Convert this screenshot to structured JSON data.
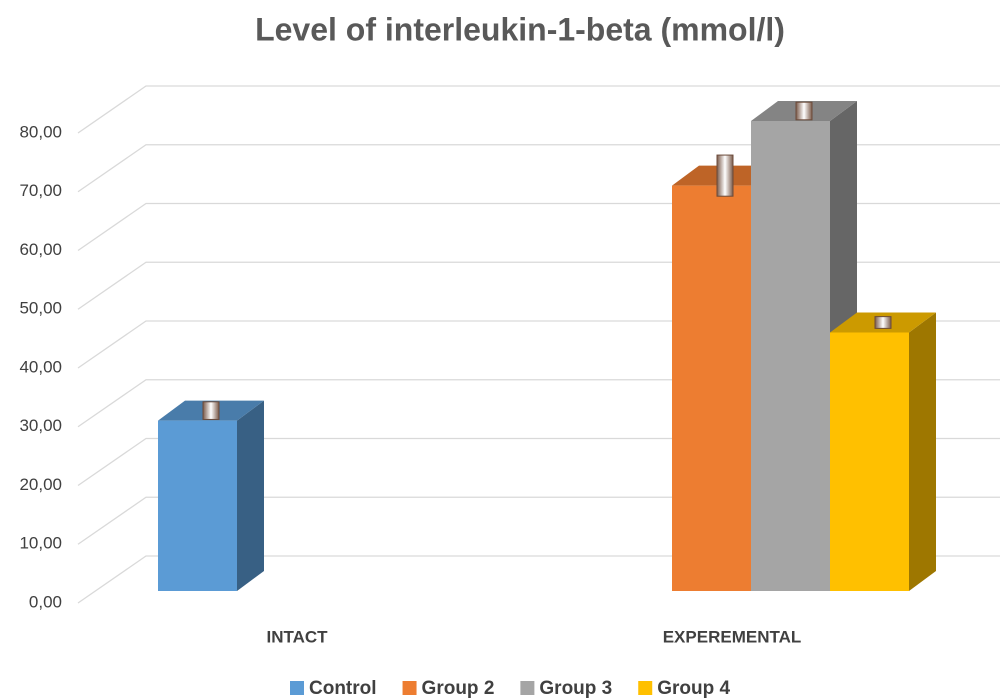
{
  "chart_data": {
    "type": "bar3d",
    "title": "Level of interleukin-1-beta (mmol/l)",
    "categories": [
      "INTACT",
      "EXPEREMENTAL"
    ],
    "series": [
      {
        "name": "Control",
        "color": "#5b9bd5",
        "values": [
          29,
          null
        ],
        "errors": [
          1.5,
          null
        ]
      },
      {
        "name": "Group 2",
        "color": "#ed7d31",
        "values": [
          null,
          69
        ],
        "errors": [
          null,
          3.5
        ]
      },
      {
        "name": "Group 3",
        "color": "#a5a5a5",
        "values": [
          null,
          80
        ],
        "errors": [
          null,
          1.5
        ]
      },
      {
        "name": "Group 4",
        "color": "#ffc000",
        "values": [
          null,
          44
        ],
        "errors": [
          null,
          1
        ]
      }
    ],
    "ylim": [
      0,
      80
    ],
    "yticks": [
      {
        "value": 0,
        "label": "0,00"
      },
      {
        "value": 10,
        "label": "10,00"
      },
      {
        "value": 20,
        "label": "20,00"
      },
      {
        "value": 30,
        "label": "30,00"
      },
      {
        "value": 40,
        "label": "40,00"
      },
      {
        "value": 50,
        "label": "50,00"
      },
      {
        "value": 60,
        "label": "60,00"
      },
      {
        "value": 70,
        "label": "70,00"
      },
      {
        "value": 80,
        "label": "80,00"
      }
    ],
    "grid": true,
    "legend": "bottom"
  }
}
